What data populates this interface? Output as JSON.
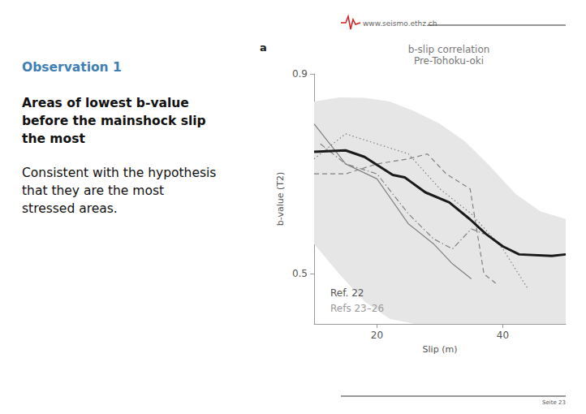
{
  "slide": {
    "heading": "Observation 1",
    "paragraphs": [
      {
        "lines": [
          "Areas of lowest b-value",
          "before the mainshock slip",
          "the most"
        ],
        "bold": true
      },
      {
        "lines": [
          "Consistent with the hypothesis",
          "that they are the most",
          "stressed areas."
        ],
        "bold": false
      }
    ],
    "logo_text": "www.seismo.ethz.ch",
    "footer": "Seite 23"
  },
  "chart_data": {
    "type": "line",
    "panel_label": "a",
    "title": "b-slip correlation",
    "subtitle": "Pre-Tohoku-oki",
    "x_label": "Slip (m)",
    "y_label": "b-value (T2)",
    "xlim": [
      10,
      50
    ],
    "xticks": [
      20,
      40
    ],
    "ylim": [
      0.4,
      0.9
    ],
    "yticks": [
      0.5,
      0.9
    ],
    "grid": false,
    "legend": "bottom-left",
    "band": {
      "color": "#e6e6e6",
      "x": [
        10,
        14,
        18,
        22,
        26,
        30,
        34,
        38,
        42,
        46,
        50
      ],
      "upper": [
        0.845,
        0.853,
        0.852,
        0.845,
        0.825,
        0.8,
        0.765,
        0.715,
        0.66,
        0.625,
        0.61
      ],
      "lower": [
        0.56,
        0.5,
        0.445,
        0.41,
        0.4,
        0.4,
        0.4,
        0.4,
        0.4,
        0.4,
        0.4
      ]
    },
    "series": [
      {
        "name": "Refs 23–26",
        "color": "#808080",
        "line_style": "solid",
        "x": [
          10,
          15,
          20,
          25,
          29,
          32,
          35
        ],
        "values": [
          0.8,
          0.72,
          0.69,
          0.6,
          0.56,
          0.52,
          0.49
        ]
      },
      {
        "name": "Refs 23–26",
        "color": "#808080",
        "line_style": "dashed",
        "x": [
          10,
          15,
          20,
          25,
          28,
          31,
          34.8,
          37,
          39
        ],
        "values": [
          0.7,
          0.7,
          0.72,
          0.73,
          0.74,
          0.7,
          0.67,
          0.5,
          0.48
        ]
      },
      {
        "name": "Refs 23–26",
        "color": "#808080",
        "line_style": "dotted",
        "x": [
          10,
          15,
          20,
          25,
          30,
          35,
          40,
          44
        ],
        "values": [
          0.73,
          0.78,
          0.76,
          0.74,
          0.67,
          0.62,
          0.55,
          0.47
        ]
      },
      {
        "name": "Refs 23–26",
        "color": "#808080",
        "line_style": "dashdot",
        "x": [
          11,
          15,
          20,
          25,
          29,
          32,
          35,
          37
        ],
        "values": [
          0.76,
          0.72,
          0.7,
          0.62,
          0.57,
          0.55,
          0.59,
          0.58
        ]
      },
      {
        "name": "Ref. 22",
        "color": "#1a1a1a",
        "line_style": "solid",
        "x": [
          10,
          15,
          18,
          22.5,
          24.4,
          27.7,
          31.5,
          34.8,
          37.3,
          40,
          42.6,
          47.8,
          50
        ],
        "values": [
          0.744,
          0.747,
          0.734,
          0.698,
          0.693,
          0.663,
          0.643,
          0.609,
          0.58,
          0.555,
          0.539,
          0.536,
          0.539
        ]
      }
    ]
  }
}
